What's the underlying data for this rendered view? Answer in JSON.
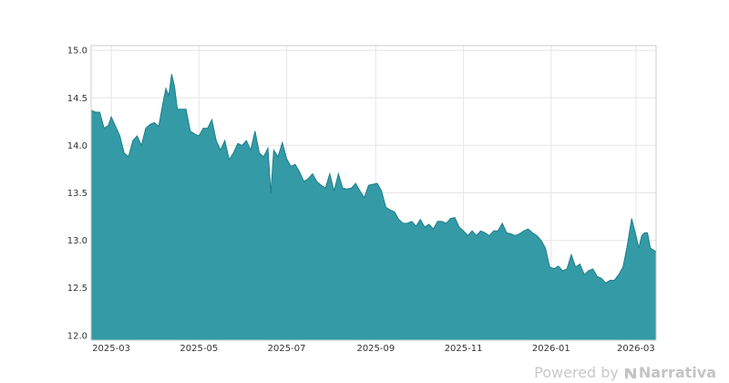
{
  "chart_data": {
    "type": "area",
    "title": "",
    "xlabel": "",
    "ylabel": "",
    "ylim": [
      11.95,
      15.05
    ],
    "xlim": [
      "2025-02-15",
      "2026-03-15"
    ],
    "y_ticks": [
      {
        "value": 12.0,
        "label": "12.0"
      },
      {
        "value": 12.5,
        "label": "12.5"
      },
      {
        "value": 13.0,
        "label": "13.0"
      },
      {
        "value": 13.5,
        "label": "13.5"
      },
      {
        "value": 14.0,
        "label": "14.0"
      },
      {
        "value": 14.5,
        "label": "14.5"
      },
      {
        "value": 15.0,
        "label": "15.0"
      }
    ],
    "x_ticks": [
      {
        "date": "2025-03-01",
        "label": "2025-03"
      },
      {
        "date": "2025-05-01",
        "label": "2025-05"
      },
      {
        "date": "2025-07-01",
        "label": "2025-07"
      },
      {
        "date": "2025-09-01",
        "label": "2025-09"
      },
      {
        "date": "2025-11-01",
        "label": "2025-11"
      },
      {
        "date": "2026-01-01",
        "label": "2026-01"
      },
      {
        "date": "2026-03-01",
        "label": "2026-03"
      }
    ],
    "grid": true,
    "fill_color": "#339aa6",
    "line_color": "#1f7f8b",
    "x": [
      "2025-02-15",
      "2025-02-18",
      "2025-02-21",
      "2025-02-24",
      "2025-02-27",
      "2025-03-01",
      "2025-03-04",
      "2025-03-07",
      "2025-03-10",
      "2025-03-13",
      "2025-03-16",
      "2025-03-19",
      "2025-03-22",
      "2025-03-25",
      "2025-03-28",
      "2025-03-31",
      "2025-04-03",
      "2025-04-06",
      "2025-04-08",
      "2025-04-10",
      "2025-04-12",
      "2025-04-14",
      "2025-04-16",
      "2025-04-19",
      "2025-04-22",
      "2025-04-25",
      "2025-04-28",
      "2025-05-01",
      "2025-05-04",
      "2025-05-07",
      "2025-05-10",
      "2025-05-13",
      "2025-05-16",
      "2025-05-19",
      "2025-05-22",
      "2025-05-25",
      "2025-05-28",
      "2025-05-31",
      "2025-06-03",
      "2025-06-06",
      "2025-06-09",
      "2025-06-12",
      "2025-06-15",
      "2025-06-18",
      "2025-06-20",
      "2025-06-22",
      "2025-06-25",
      "2025-06-28",
      "2025-07-01",
      "2025-07-04",
      "2025-07-07",
      "2025-07-10",
      "2025-07-13",
      "2025-07-16",
      "2025-07-19",
      "2025-07-22",
      "2025-07-25",
      "2025-07-28",
      "2025-07-31",
      "2025-08-03",
      "2025-08-06",
      "2025-08-09",
      "2025-08-12",
      "2025-08-15",
      "2025-08-18",
      "2025-08-21",
      "2025-08-24",
      "2025-08-27",
      "2025-08-30",
      "2025-09-02",
      "2025-09-05",
      "2025-09-08",
      "2025-09-11",
      "2025-09-14",
      "2025-09-17",
      "2025-09-20",
      "2025-09-23",
      "2025-09-26",
      "2025-09-29",
      "2025-10-02",
      "2025-10-05",
      "2025-10-08",
      "2025-10-11",
      "2025-10-14",
      "2025-10-17",
      "2025-10-20",
      "2025-10-23",
      "2025-10-26",
      "2025-10-29",
      "2025-11-01",
      "2025-11-04",
      "2025-11-07",
      "2025-11-10",
      "2025-11-13",
      "2025-11-16",
      "2025-11-19",
      "2025-11-22",
      "2025-11-25",
      "2025-11-28",
      "2025-12-01",
      "2025-12-04",
      "2025-12-07",
      "2025-12-10",
      "2025-12-13",
      "2025-12-16",
      "2025-12-19",
      "2025-12-22",
      "2025-12-25",
      "2025-12-28",
      "2025-12-31",
      "2026-01-03",
      "2026-01-06",
      "2026-01-09",
      "2026-01-12",
      "2026-01-15",
      "2026-01-18",
      "2026-01-21",
      "2026-01-24",
      "2026-01-27",
      "2026-01-30",
      "2026-02-02",
      "2026-02-05",
      "2026-02-08",
      "2026-02-11",
      "2026-02-14",
      "2026-02-17",
      "2026-02-20",
      "2026-02-23",
      "2026-02-26",
      "2026-03-01",
      "2026-03-03",
      "2026-03-05",
      "2026-03-07",
      "2026-03-09",
      "2026-03-11",
      "2026-03-13",
      "2026-03-15"
    ],
    "values": [
      14.37,
      14.35,
      14.35,
      14.18,
      14.21,
      14.3,
      14.2,
      14.1,
      13.92,
      13.88,
      14.05,
      14.1,
      14.0,
      14.18,
      14.22,
      14.24,
      14.2,
      14.45,
      14.6,
      14.52,
      14.75,
      14.62,
      14.38,
      14.38,
      14.38,
      14.15,
      14.12,
      14.1,
      14.18,
      14.18,
      14.27,
      14.05,
      13.95,
      14.05,
      13.85,
      13.92,
      14.02,
      14.0,
      14.05,
      13.95,
      14.15,
      13.92,
      13.88,
      13.97,
      13.5,
      13.95,
      13.88,
      14.03,
      13.86,
      13.78,
      13.8,
      13.72,
      13.62,
      13.65,
      13.7,
      13.62,
      13.58,
      13.55,
      13.7,
      13.52,
      13.7,
      13.55,
      13.54,
      13.55,
      13.6,
      13.52,
      13.45,
      13.58,
      13.59,
      13.6,
      13.52,
      13.35,
      13.32,
      13.3,
      13.22,
      13.18,
      13.18,
      13.2,
      13.15,
      13.22,
      13.14,
      13.17,
      13.12,
      13.2,
      13.2,
      13.18,
      13.23,
      13.24,
      13.14,
      13.1,
      13.05,
      13.1,
      13.05,
      13.1,
      13.08,
      13.05,
      13.1,
      13.1,
      13.18,
      13.08,
      13.07,
      13.05,
      13.07,
      13.1,
      13.12,
      13.08,
      13.05,
      13.0,
      12.92,
      12.72,
      12.7,
      12.73,
      12.68,
      12.7,
      12.85,
      12.72,
      12.75,
      12.64,
      12.68,
      12.7,
      12.62,
      12.6,
      12.55,
      12.58,
      12.58,
      12.64,
      12.72,
      12.95,
      13.23,
      13.05,
      12.92,
      13.05,
      13.08,
      13.08,
      12.92,
      12.9,
      12.88
    ]
  },
  "watermark": {
    "prefix": "Powered by",
    "brand": "Narrativa"
  }
}
